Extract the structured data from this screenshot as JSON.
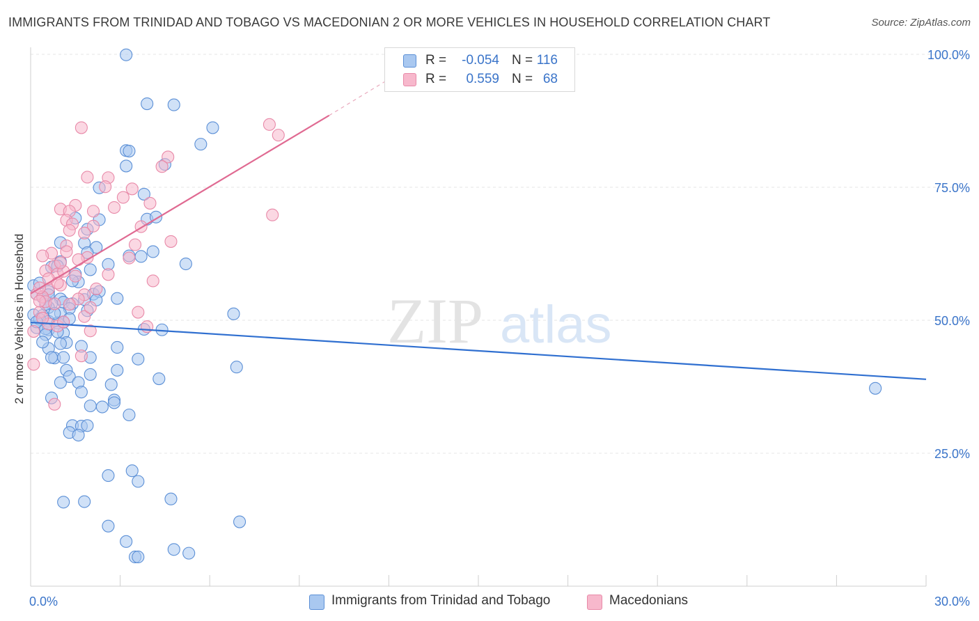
{
  "title": "IMMIGRANTS FROM TRINIDAD AND TOBAGO VS MACEDONIAN 2 OR MORE VEHICLES IN HOUSEHOLD CORRELATION CHART",
  "source": "Source: ZipAtlas.com",
  "watermark": {
    "zip": "ZIP",
    "atlas": "atlas"
  },
  "legend_top": {
    "rows": [
      {
        "r_label": "R =",
        "r_value": "-0.054",
        "n_label": "N =",
        "n_value": "116",
        "color": "#a9c8f0"
      },
      {
        "r_label": "R =",
        "r_value": "0.559",
        "n_label": "N =",
        "n_value": "68",
        "color": "#f7b8cc"
      }
    ]
  },
  "legend_bottom": {
    "items": [
      {
        "label": "Immigrants from Trinidad and Tobago",
        "color": "#a9c8f0"
      },
      {
        "label": "Macedonians",
        "color": "#f7b8cc"
      }
    ]
  },
  "chart_data": {
    "type": "scatter",
    "ylabel": "2 or more Vehicles in Household",
    "xlim": [
      0,
      30
    ],
    "ylim": [
      0,
      100
    ],
    "x_tick_labels": [
      {
        "value": 0,
        "label": "0.0%"
      },
      {
        "value": 30,
        "label": "30.0%"
      }
    ],
    "y_tick_labels": [
      {
        "value": 25,
        "label": "25.0%"
      },
      {
        "value": 50,
        "label": "50.0%"
      },
      {
        "value": 75,
        "label": "75.0%"
      },
      {
        "value": 100,
        "label": "100.0%"
      }
    ],
    "colors": {
      "blue_fill": "#a9c8f0",
      "blue_stroke": "#5b8fd6",
      "blue_line": "#2f6fd0",
      "pink_fill": "#f7b8cc",
      "pink_stroke": "#e889a8",
      "pink_line": "#e06a92"
    },
    "series": [
      {
        "name": "Immigrants from Trinidad and Tobago",
        "r": -0.054,
        "n": 116,
        "trend": {
          "x": [
            0,
            30
          ],
          "y": [
            49.6,
            38.9
          ]
        },
        "points": [
          [
            3.2,
            99.9
          ],
          [
            3.9,
            90.7
          ],
          [
            4.8,
            90.5
          ],
          [
            6.1,
            86.2
          ],
          [
            5.7,
            83.1
          ],
          [
            3.2,
            81.9
          ],
          [
            3.3,
            81.8
          ],
          [
            3.2,
            79.0
          ],
          [
            4.5,
            79.3
          ],
          [
            2.3,
            74.9
          ],
          [
            3.8,
            73.7
          ],
          [
            3.9,
            69.0
          ],
          [
            4.2,
            69.4
          ],
          [
            1.5,
            69.2
          ],
          [
            2.3,
            68.9
          ],
          [
            1.9,
            67.1
          ],
          [
            1.8,
            64.5
          ],
          [
            2.2,
            63.7
          ],
          [
            1.0,
            64.6
          ],
          [
            1.9,
            62.7
          ],
          [
            3.3,
            62.1
          ],
          [
            3.7,
            62.0
          ],
          [
            4.1,
            62.9
          ],
          [
            5.2,
            60.6
          ],
          [
            2.6,
            60.5
          ],
          [
            1.0,
            61.0
          ],
          [
            0.7,
            60.0
          ],
          [
            0.9,
            60.2
          ],
          [
            1.5,
            58.7
          ],
          [
            1.6,
            57.2
          ],
          [
            1.4,
            57.4
          ],
          [
            0.6,
            55.4
          ],
          [
            0.1,
            56.5
          ],
          [
            0.2,
            54.9
          ],
          [
            0.4,
            54.3
          ],
          [
            1.0,
            54.0
          ],
          [
            0.7,
            53.1
          ],
          [
            1.1,
            53.4
          ],
          [
            1.4,
            53.1
          ],
          [
            1.8,
            53.9
          ],
          [
            2.1,
            54.9
          ],
          [
            2.3,
            55.4
          ],
          [
            2.9,
            54.1
          ],
          [
            2.2,
            53.8
          ],
          [
            1.3,
            52.2
          ],
          [
            1.0,
            51.3
          ],
          [
            0.6,
            52.4
          ],
          [
            0.4,
            50.9
          ],
          [
            0.6,
            49.8
          ],
          [
            0.9,
            49.5
          ],
          [
            1.1,
            49.6
          ],
          [
            0.2,
            48.6
          ],
          [
            0.6,
            48.2
          ],
          [
            0.5,
            48.4
          ],
          [
            0.5,
            47.3
          ],
          [
            1.1,
            47.6
          ],
          [
            3.8,
            48.3
          ],
          [
            4.4,
            48.2
          ],
          [
            6.8,
            51.2
          ],
          [
            1.2,
            45.8
          ],
          [
            1.0,
            45.6
          ],
          [
            0.6,
            44.7
          ],
          [
            1.7,
            45.1
          ],
          [
            2.9,
            44.9
          ],
          [
            0.8,
            42.9
          ],
          [
            0.7,
            43.0
          ],
          [
            1.1,
            43.0
          ],
          [
            2.0,
            43.0
          ],
          [
            3.6,
            42.7
          ],
          [
            1.2,
            40.6
          ],
          [
            2.9,
            40.6
          ],
          [
            6.9,
            41.2
          ],
          [
            1.3,
            39.4
          ],
          [
            2.0,
            39.8
          ],
          [
            1.6,
            38.3
          ],
          [
            1.0,
            38.3
          ],
          [
            2.7,
            37.9
          ],
          [
            4.3,
            39.0
          ],
          [
            1.7,
            36.5
          ],
          [
            0.7,
            35.4
          ],
          [
            2.8,
            35.0
          ],
          [
            2.8,
            34.5
          ],
          [
            2.0,
            33.9
          ],
          [
            2.4,
            33.7
          ],
          [
            3.3,
            32.2
          ],
          [
            1.4,
            30.2
          ],
          [
            1.7,
            30.1
          ],
          [
            1.9,
            30.2
          ],
          [
            1.3,
            28.9
          ],
          [
            1.6,
            28.4
          ],
          [
            2.6,
            20.8
          ],
          [
            3.4,
            21.7
          ],
          [
            3.6,
            19.7
          ],
          [
            1.1,
            15.8
          ],
          [
            1.8,
            15.9
          ],
          [
            4.7,
            16.4
          ],
          [
            7.0,
            12.1
          ],
          [
            2.6,
            11.3
          ],
          [
            3.2,
            8.4
          ],
          [
            4.8,
            6.9
          ],
          [
            5.3,
            6.2
          ],
          [
            3.5,
            5.5
          ],
          [
            3.6,
            5.5
          ],
          [
            28.3,
            37.2
          ],
          [
            0.1,
            51.0
          ],
          [
            0.3,
            50.2
          ],
          [
            0.5,
            53.0
          ],
          [
            0.8,
            51.3
          ],
          [
            1.3,
            50.3
          ],
          [
            0.4,
            45.9
          ],
          [
            0.3,
            57.0
          ],
          [
            0.2,
            49.7
          ],
          [
            2.0,
            59.5
          ],
          [
            0.9,
            47.8
          ],
          [
            0.6,
            54.8
          ],
          [
            1.9,
            51.8
          ]
        ]
      },
      {
        "name": "Macedonians",
        "r": 0.559,
        "n": 68,
        "trend": {
          "x": [
            0,
            10
          ],
          "y": [
            55.0,
            88.5
          ]
        },
        "trend_dashed": {
          "x": [
            10,
            12.2
          ],
          "y": [
            88.5,
            96.0
          ]
        },
        "points": [
          [
            8.0,
            86.8
          ],
          [
            8.3,
            84.8
          ],
          [
            1.7,
            86.2
          ],
          [
            4.6,
            80.7
          ],
          [
            4.4,
            78.9
          ],
          [
            1.9,
            76.9
          ],
          [
            2.6,
            76.8
          ],
          [
            2.5,
            75.1
          ],
          [
            3.4,
            74.7
          ],
          [
            3.1,
            73.1
          ],
          [
            4.0,
            72.0
          ],
          [
            1.5,
            71.6
          ],
          [
            2.8,
            71.2
          ],
          [
            1.0,
            70.9
          ],
          [
            1.3,
            70.5
          ],
          [
            2.1,
            70.5
          ],
          [
            8.1,
            69.8
          ],
          [
            1.2,
            68.8
          ],
          [
            2.1,
            67.7
          ],
          [
            3.7,
            67.6
          ],
          [
            1.4,
            68.1
          ],
          [
            1.8,
            66.4
          ],
          [
            1.3,
            66.9
          ],
          [
            4.7,
            64.8
          ],
          [
            3.5,
            64.2
          ],
          [
            1.2,
            64.0
          ],
          [
            0.7,
            62.6
          ],
          [
            0.4,
            62.1
          ],
          [
            1.9,
            61.8
          ],
          [
            3.3,
            61.7
          ],
          [
            1.6,
            61.4
          ],
          [
            0.8,
            60.2
          ],
          [
            0.5,
            59.3
          ],
          [
            0.9,
            58.7
          ],
          [
            1.1,
            59.2
          ],
          [
            2.6,
            58.6
          ],
          [
            4.1,
            57.4
          ],
          [
            1.0,
            56.6
          ],
          [
            0.6,
            55.9
          ],
          [
            0.2,
            54.9
          ],
          [
            0.4,
            54.4
          ],
          [
            1.8,
            54.8
          ],
          [
            1.6,
            54.0
          ],
          [
            0.5,
            53.5
          ],
          [
            0.8,
            53.1
          ],
          [
            1.3,
            53.0
          ],
          [
            0.3,
            51.5
          ],
          [
            3.6,
            51.5
          ],
          [
            1.8,
            50.7
          ],
          [
            0.6,
            49.3
          ],
          [
            0.9,
            48.9
          ],
          [
            1.1,
            49.7
          ],
          [
            3.9,
            48.8
          ],
          [
            2.0,
            48.0
          ],
          [
            0.1,
            47.9
          ],
          [
            1.7,
            43.3
          ],
          [
            0.1,
            41.7
          ],
          [
            0.8,
            34.2
          ],
          [
            0.3,
            53.6
          ],
          [
            0.6,
            57.8
          ],
          [
            1.5,
            58.3
          ],
          [
            2.0,
            52.4
          ],
          [
            0.4,
            50.4
          ],
          [
            1.2,
            62.9
          ],
          [
            2.2,
            55.9
          ],
          [
            0.9,
            57.0
          ],
          [
            0.3,
            56.1
          ],
          [
            1.0,
            60.8
          ]
        ]
      }
    ]
  }
}
